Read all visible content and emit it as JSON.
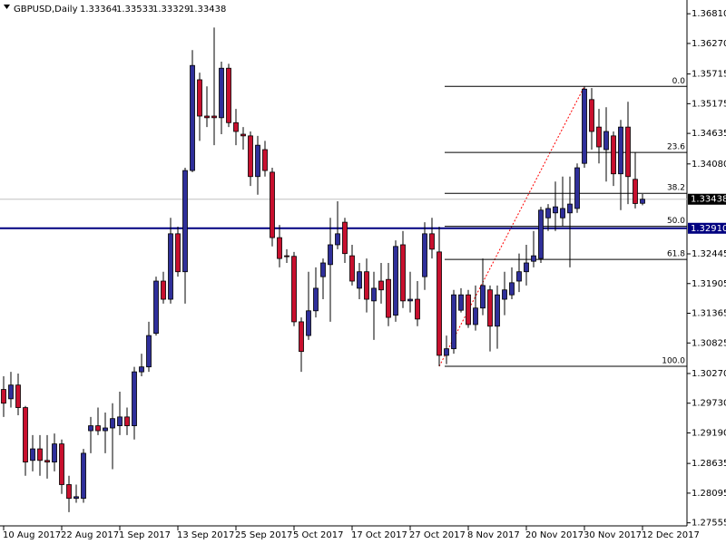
{
  "chart_data": {
    "type": "candlestick",
    "title": "GBPUSD,Daily",
    "categories": [
      "10 Aug 2017",
      null,
      null,
      null,
      null,
      null,
      null,
      null,
      "22 Aug 2017",
      null,
      null,
      null,
      null,
      null,
      null,
      null,
      "1 Sep 2017",
      null,
      null,
      null,
      null,
      null,
      null,
      null,
      "13 Sep 2017",
      null,
      null,
      null,
      null,
      null,
      null,
      null,
      "25 Sep 2017",
      null,
      null,
      null,
      null,
      null,
      null,
      null,
      "5 Oct 2017",
      null,
      null,
      null,
      null,
      null,
      null,
      null,
      "17 Oct 2017",
      null,
      null,
      null,
      null,
      null,
      null,
      null,
      "27 Oct 2017",
      null,
      null,
      null,
      null,
      null,
      null,
      null,
      "8 Nov 2017",
      null,
      null,
      null,
      null,
      null,
      null,
      null,
      "20 Nov 2017",
      null,
      null,
      null,
      null,
      null,
      null,
      null,
      "30 Nov 2017",
      null,
      null,
      null,
      null,
      null,
      null,
      null,
      "12 Dec 2017"
    ],
    "open": [
      1.2998,
      1.2981,
      1.3006,
      1.2965,
      1.2869,
      1.289,
      1.2869,
      1.2866,
      1.2899,
      1.2825,
      1.28,
      1.28,
      1.2923,
      1.2932,
      1.2923,
      1.2928,
      1.2932,
      1.2948,
      1.2932,
      1.303,
      1.3039,
      1.31,
      1.3195,
      1.3162,
      1.3281,
      1.3212,
      1.3396,
      1.3561,
      1.3495,
      1.3495,
      1.3492,
      1.3582,
      1.3483,
      1.3462,
      1.3459,
      1.3385,
      1.3434,
      1.3393,
      1.3274,
      1.3241,
      1.324,
      1.3121,
      1.3096,
      1.3141,
      1.3203,
      1.3225,
      1.3261,
      1.3302,
      1.3241,
      1.3182,
      1.3212,
      1.3159,
      1.3195,
      1.3198,
      1.3133,
      1.3261,
      1.3159,
      1.3162,
      1.3203,
      1.3281,
      1.3248,
      1.306,
      1.3072,
      1.3142,
      1.317,
      1.3116,
      1.3146,
      1.3179,
      1.3113,
      1.3162,
      1.317,
      1.3195,
      1.3212,
      1.3231,
      1.3236,
      1.331,
      1.3319,
      1.331,
      1.3319,
      1.3327,
      1.3409,
      1.3525,
      1.3475,
      1.3434,
      1.3459,
      1.339,
      1.3475,
      1.338,
      1.33364
    ],
    "high": [
      1.3022,
      1.303,
      1.3027,
      1.2968,
      1.2915,
      1.2915,
      1.2915,
      1.2918,
      1.2907,
      1.2841,
      1.2825,
      1.289,
      1.2948,
      1.2965,
      1.2956,
      1.2973,
      1.2994,
      1.2965,
      1.3039,
      1.3063,
      1.3121,
      1.3203,
      1.3212,
      1.331,
      1.3294,
      1.3401,
      1.3615,
      1.3574,
      1.3549,
      1.3656,
      1.3594,
      1.359,
      1.3508,
      1.3475,
      1.3467,
      1.3459,
      1.345,
      1.3401,
      1.3297,
      1.3253,
      1.3248,
      1.3129,
      1.3212,
      1.322,
      1.3236,
      1.331,
      1.334,
      1.331,
      1.3261,
      1.3228,
      1.3236,
      1.3212,
      1.3228,
      1.3228,
      1.3269,
      1.3286,
      1.3212,
      1.3195,
      1.3302,
      1.331,
      1.3294,
      1.3096,
      1.3179,
      1.3182,
      1.3179,
      1.3187,
      1.3236,
      1.3187,
      1.3187,
      1.3212,
      1.322,
      1.3245,
      1.3261,
      1.3286,
      1.333,
      1.3335,
      1.3376,
      1.3385,
      1.3385,
      1.3409,
      1.3549,
      1.3546,
      1.3508,
      1.3511,
      1.3467,
      1.3488,
      1.3521,
      1.3429,
      1.33533
    ],
    "low": [
      1.2948,
      1.2965,
      1.2951,
      1.2841,
      1.2849,
      1.2841,
      1.2836,
      1.2849,
      1.2808,
      1.2775,
      1.2792,
      1.2792,
      1.2882,
      1.2915,
      1.2882,
      1.2853,
      1.2915,
      1.2915,
      1.2907,
      1.3022,
      1.303,
      1.3096,
      1.3154,
      1.3154,
      1.3203,
      1.3154,
      1.3393,
      1.345,
      1.3475,
      1.3442,
      1.3462,
      1.3475,
      1.3442,
      1.3434,
      1.3368,
      1.3352,
      1.3385,
      1.3258,
      1.322,
      1.3228,
      1.3113,
      1.303,
      1.3088,
      1.3129,
      1.3162,
      1.3121,
      1.3253,
      1.3228,
      1.3187,
      1.3162,
      1.3138,
      1.3088,
      1.3154,
      1.3113,
      1.3121,
      1.3146,
      1.3138,
      1.3113,
      1.3179,
      1.3236,
      1.304,
      1.3044,
      1.3063,
      1.3138,
      1.311,
      1.3105,
      1.3133,
      1.3067,
      1.3072,
      1.3133,
      1.3162,
      1.3175,
      1.3187,
      1.322,
      1.3228,
      1.3286,
      1.3286,
      1.3294,
      1.322,
      1.3319,
      1.3401,
      1.3434,
      1.3409,
      1.3376,
      1.3368,
      1.3324,
      1.3335,
      1.3327,
      1.33329
    ],
    "close": [
      1.2973,
      1.3006,
      1.2965,
      1.2866,
      1.289,
      1.2869,
      1.2866,
      1.2899,
      1.2825,
      1.28,
      1.2803,
      1.2882,
      1.2932,
      1.2923,
      1.2928,
      1.2945,
      1.2948,
      1.2932,
      1.303,
      1.3039,
      1.3096,
      1.3195,
      1.3162,
      1.3281,
      1.3212,
      1.3396,
      1.3587,
      1.3495,
      1.3492,
      1.3492,
      1.3582,
      1.3483,
      1.3467,
      1.3459,
      1.3385,
      1.3442,
      1.3396,
      1.3274,
      1.3236,
      1.324,
      1.3121,
      1.3067,
      1.3141,
      1.3182,
      1.3228,
      1.3261,
      1.3281,
      1.3245,
      1.3195,
      1.3212,
      1.3162,
      1.3182,
      1.3179,
      1.3129,
      1.3258,
      1.3159,
      1.3162,
      1.3126,
      1.3281,
      1.3253,
      1.306,
      1.3072,
      1.317,
      1.317,
      1.3116,
      1.3146,
      1.3187,
      1.3113,
      1.317,
      1.3179,
      1.3192,
      1.3212,
      1.3228,
      1.3241,
      1.3324,
      1.3327,
      1.333,
      1.3327,
      1.3335,
      1.3401,
      1.3544,
      1.3467,
      1.3439,
      1.3467,
      1.339,
      1.3475,
      1.3385,
      1.3336,
      1.33438
    ],
    "bull_color": "#2f2f9a",
    "bear_color": "#c8102e",
    "ylim": [
      1.275,
      1.3706
    ],
    "yticks": [
      {
        "value": 1.3681,
        "label": "1.36810"
      },
      {
        "value": 1.3627,
        "label": "1.36270"
      },
      {
        "value": 1.35715,
        "label": "1.35715"
      },
      {
        "value": 1.35175,
        "label": "1.35175"
      },
      {
        "value": 1.34635,
        "label": "1.34635"
      },
      {
        "value": 1.3408,
        "label": "1.34080"
      },
      {
        "value": 1.32445,
        "label": "1.32445"
      },
      {
        "value": 1.31905,
        "label": "1.31905"
      },
      {
        "value": 1.31365,
        "label": "1.31365"
      },
      {
        "value": 1.30825,
        "label": "1.30825"
      },
      {
        "value": 1.3027,
        "label": "1.30270"
      },
      {
        "value": 1.2973,
        "label": "1.29730"
      },
      {
        "value": 1.2919,
        "label": "1.29190"
      },
      {
        "value": 1.28635,
        "label": "1.28635"
      },
      {
        "value": 1.28095,
        "label": "1.28095"
      },
      {
        "value": 1.27555,
        "label": "1.27555"
      }
    ],
    "hline": {
      "value": 1.3291,
      "label": "1.32910",
      "color": "#000080"
    },
    "fib": {
      "high": 1.3549,
      "low": 1.304,
      "color": "#000000",
      "trend_color": "#ff0000",
      "levels": [
        {
          "value": 0,
          "label": "0.0"
        },
        {
          "value": 23.6,
          "label": "23.6"
        },
        {
          "value": 38.2,
          "label": "38.2"
        },
        {
          "value": 50,
          "label": "50.0"
        },
        {
          "value": 61.8,
          "label": "61.8"
        },
        {
          "value": 100,
          "label": "100.0"
        }
      ]
    }
  }
}
